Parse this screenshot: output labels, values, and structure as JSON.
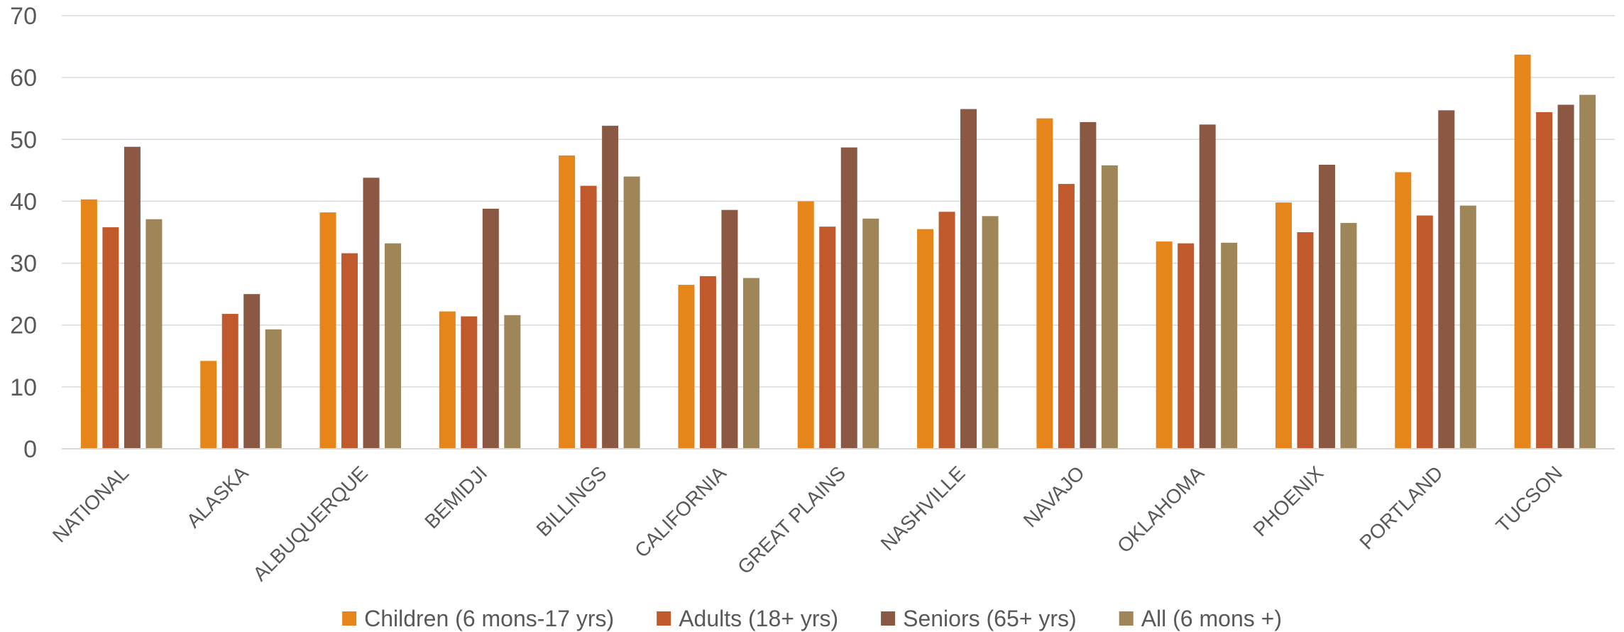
{
  "chart_data": {
    "type": "bar",
    "title": "",
    "xlabel": "",
    "ylabel": "",
    "ylim": [
      0,
      70
    ],
    "yticks": [
      0,
      10,
      20,
      30,
      40,
      50,
      60,
      70
    ],
    "grid": true,
    "legend_position": "bottom",
    "categories": [
      "NATIONAL",
      "ALASKA",
      "ALBUQUERQUE",
      "BEMIDJI",
      "BILLINGS",
      "CALIFORNIA",
      "GREAT PLAINS",
      "NASHVILLE",
      "NAVAJO",
      "OKLAHOMA",
      "PHOENIX",
      "PORTLAND",
      "TUCSON"
    ],
    "series": [
      {
        "name": "Children (6 mons-17 yrs)",
        "color": "#E6861A",
        "values": [
          40.3,
          14.2,
          38.2,
          22.2,
          47.4,
          26.5,
          40.0,
          35.5,
          53.4,
          33.5,
          39.8,
          44.7,
          63.7
        ]
      },
      {
        "name": "Adults (18+ yrs)",
        "color": "#C0592B",
        "values": [
          35.8,
          21.8,
          31.6,
          21.4,
          42.5,
          27.9,
          35.9,
          38.3,
          42.8,
          33.2,
          35.0,
          37.7,
          54.4
        ]
      },
      {
        "name": "Seniors (65+ yrs)",
        "color": "#8A5843",
        "values": [
          48.8,
          25.0,
          43.8,
          38.8,
          52.2,
          38.6,
          48.7,
          54.9,
          52.8,
          52.4,
          45.9,
          54.7,
          55.6
        ]
      },
      {
        "name": "All (6 mons +)",
        "color": "#9E8658",
        "values": [
          37.1,
          19.3,
          33.2,
          21.6,
          44.0,
          27.6,
          37.2,
          37.6,
          45.8,
          33.3,
          36.5,
          39.3,
          57.2
        ]
      }
    ]
  }
}
